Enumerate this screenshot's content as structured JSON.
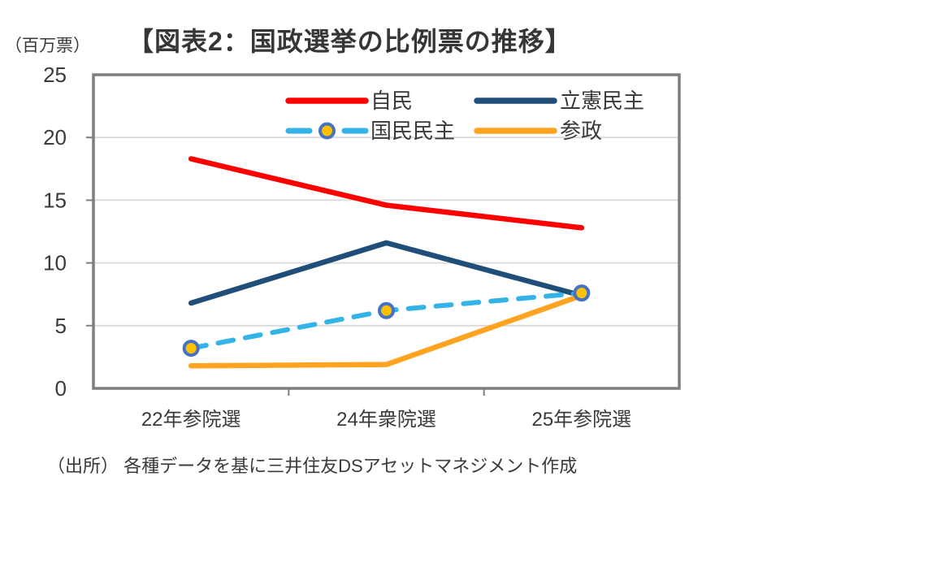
{
  "page": {
    "unit_label": "（百万票）",
    "title": "【図表2：国政選挙の比例票の推移】",
    "source": "（出所） 各種データを基に三井住友DSアセットマネジメント作成"
  },
  "chart_data": {
    "type": "line",
    "title": "【図表2：国政選挙の比例票の推移】",
    "unit": "百万票",
    "categories": [
      "22年参院選",
      "24年衆院選",
      "25年参院選"
    ],
    "series": [
      {
        "id": "jimin",
        "name": "自民",
        "color": "#ff0000",
        "style": "solid",
        "values": [
          18.3,
          14.6,
          12.8
        ]
      },
      {
        "id": "rikken-minshu",
        "name": "立憲民主",
        "color": "#1f4e79",
        "style": "solid",
        "values": [
          6.8,
          11.6,
          7.4
        ]
      },
      {
        "id": "kokumin-minshu",
        "name": "国民民主",
        "color": "#33b3e6",
        "style": "dashed",
        "values": [
          3.2,
          6.2,
          7.6
        ],
        "marker": {
          "fill": "#ffc000",
          "stroke": "#4472c4"
        }
      },
      {
        "id": "sanseito",
        "name": "参政",
        "color": "#ffa320",
        "style": "solid",
        "values": [
          1.8,
          1.9,
          7.4
        ]
      }
    ],
    "ylim": [
      0,
      25
    ],
    "yticks": [
      0,
      5,
      10,
      15,
      20,
      25
    ],
    "grid": true,
    "legend_position": "top-inside",
    "axis_color": "#7f7f7f",
    "gridline_color": "#d9d9d9",
    "text_color": "#3a3a3a"
  }
}
